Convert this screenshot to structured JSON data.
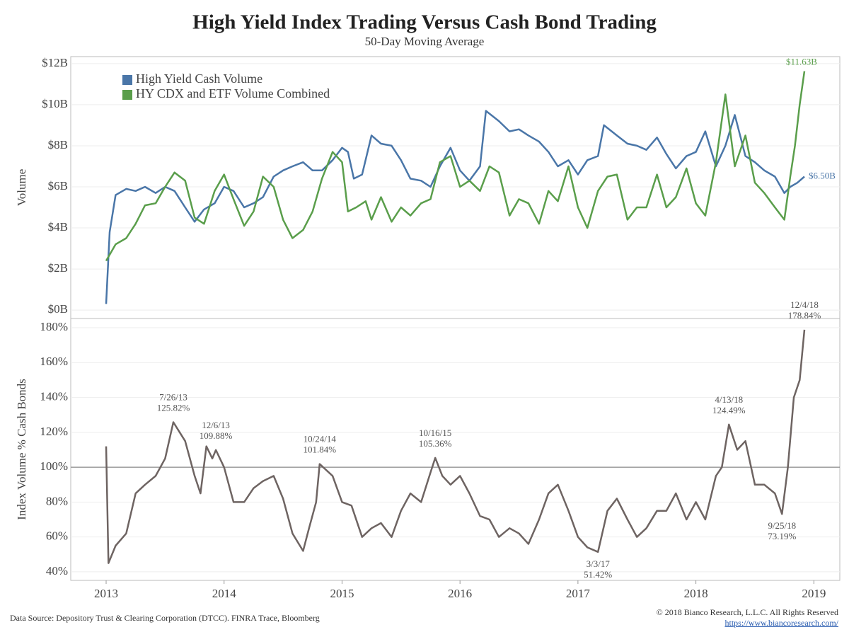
{
  "header": {
    "title": "High Yield Index Trading Versus Cash Bond Trading",
    "subtitle": "50-Day Moving Average"
  },
  "footer": {
    "source": "Data Source: Depository Trust & Clearing Corporation (DTCC). FINRA Trace, Bloomberg",
    "copyright": "© 2018 Bianco Research, L.L.C. All Rights Reserved",
    "url": "https://www.biancoresearch.com/"
  },
  "chart_data": [
    {
      "type": "line",
      "y_label": "Volume",
      "legend": "top-left",
      "grid": true,
      "xlim": [
        2012.7,
        2019.22
      ],
      "ylim": [
        -0.41,
        12.34
      ],
      "yticks": [
        {
          "value": 0,
          "label": "$0B"
        },
        {
          "value": 2,
          "label": "$2B"
        },
        {
          "value": 4,
          "label": "$4B"
        },
        {
          "value": 6,
          "label": "$6B"
        },
        {
          "value": 8,
          "label": "$8B"
        },
        {
          "value": 10,
          "label": "$10B"
        },
        {
          "value": 12,
          "label": "$12B"
        }
      ],
      "series": [
        {
          "name": "High Yield Cash Volume",
          "color": "#4a76a8",
          "x": [
            2013.0,
            2013.03,
            2013.08,
            2013.17,
            2013.25,
            2013.33,
            2013.42,
            2013.5,
            2013.58,
            2013.67,
            2013.75,
            2013.83,
            2013.92,
            2014.0,
            2014.08,
            2014.17,
            2014.25,
            2014.33,
            2014.42,
            2014.5,
            2014.58,
            2014.67,
            2014.75,
            2014.83,
            2014.92,
            2015.0,
            2015.05,
            2015.1,
            2015.17,
            2015.25,
            2015.33,
            2015.42,
            2015.5,
            2015.58,
            2015.67,
            2015.75,
            2015.83,
            2015.92,
            2016.0,
            2016.08,
            2016.17,
            2016.22,
            2016.33,
            2016.42,
            2016.5,
            2016.58,
            2016.67,
            2016.75,
            2016.83,
            2016.92,
            2017.0,
            2017.08,
            2017.17,
            2017.22,
            2017.33,
            2017.42,
            2017.5,
            2017.58,
            2017.67,
            2017.75,
            2017.83,
            2017.92,
            2018.0,
            2018.08,
            2018.17,
            2018.25,
            2018.33,
            2018.42,
            2018.5,
            2018.58,
            2018.67,
            2018.75,
            2018.8,
            2018.86,
            2018.92
          ],
          "values": [
            0.3,
            3.8,
            5.6,
            5.9,
            5.8,
            6.0,
            5.7,
            6.0,
            5.8,
            5.0,
            4.3,
            4.9,
            5.2,
            6.0,
            5.8,
            5.0,
            5.2,
            5.5,
            6.5,
            6.8,
            7.0,
            7.2,
            6.8,
            6.8,
            7.3,
            7.9,
            7.7,
            6.4,
            6.6,
            8.5,
            8.1,
            8.0,
            7.3,
            6.4,
            6.3,
            6.0,
            7.0,
            7.9,
            6.8,
            6.3,
            7.0,
            9.7,
            9.2,
            8.7,
            8.8,
            8.5,
            8.2,
            7.7,
            7.0,
            7.3,
            6.6,
            7.3,
            7.5,
            9.0,
            8.5,
            8.1,
            8.0,
            7.8,
            8.4,
            7.6,
            6.9,
            7.5,
            7.7,
            8.7,
            7.0,
            8.0,
            9.5,
            7.5,
            7.2,
            6.8,
            6.5,
            5.7,
            6.0,
            6.2,
            6.5
          ],
          "end_label": {
            "value": 6.5,
            "label": "$6.50B"
          }
        },
        {
          "name": "HY CDX and ETF Volume Combined",
          "color": "#5a9e4b",
          "x": [
            2013.0,
            2013.08,
            2013.17,
            2013.25,
            2013.33,
            2013.42,
            2013.5,
            2013.58,
            2013.67,
            2013.75,
            2013.83,
            2013.92,
            2014.0,
            2014.08,
            2014.17,
            2014.25,
            2014.33,
            2014.42,
            2014.5,
            2014.58,
            2014.67,
            2014.75,
            2014.83,
            2014.92,
            2015.0,
            2015.05,
            2015.12,
            2015.2,
            2015.25,
            2015.33,
            2015.42,
            2015.5,
            2015.58,
            2015.67,
            2015.75,
            2015.83,
            2015.92,
            2016.0,
            2016.08,
            2016.17,
            2016.25,
            2016.33,
            2016.42,
            2016.5,
            2016.58,
            2016.67,
            2016.75,
            2016.83,
            2016.92,
            2017.0,
            2017.08,
            2017.17,
            2017.25,
            2017.33,
            2017.42,
            2017.5,
            2017.58,
            2017.67,
            2017.75,
            2017.83,
            2017.92,
            2018.0,
            2018.08,
            2018.17,
            2018.25,
            2018.33,
            2018.42,
            2018.5,
            2018.58,
            2018.67,
            2018.75,
            2018.8,
            2018.84,
            2018.88,
            2018.92
          ],
          "values": [
            2.4,
            3.2,
            3.5,
            4.2,
            5.1,
            5.2,
            6.0,
            6.7,
            6.3,
            4.5,
            4.2,
            5.8,
            6.6,
            5.4,
            4.1,
            4.8,
            6.5,
            6.0,
            4.4,
            3.5,
            3.9,
            4.8,
            6.4,
            7.7,
            7.2,
            4.8,
            5.0,
            5.3,
            4.4,
            5.5,
            4.3,
            5.0,
            4.6,
            5.2,
            5.4,
            7.2,
            7.5,
            6.0,
            6.3,
            5.8,
            7.0,
            6.7,
            4.6,
            5.4,
            5.2,
            4.2,
            5.8,
            5.3,
            7.0,
            5.0,
            4.0,
            5.8,
            6.5,
            6.6,
            4.4,
            5.0,
            5.0,
            6.6,
            5.0,
            5.5,
            6.9,
            5.2,
            4.6,
            7.2,
            10.5,
            7.0,
            8.5,
            6.2,
            5.7,
            5.0,
            4.4,
            6.5,
            8.0,
            10.0,
            11.63
          ],
          "end_label": {
            "value": 11.63,
            "label": "$11.63B"
          }
        }
      ]
    },
    {
      "type": "line",
      "y_label": "Index Volume % Cash Bonds",
      "grid": true,
      "xlim": [
        2012.7,
        2019.22
      ],
      "ylim": [
        35.1,
        185.3
      ],
      "xticks": [
        2013,
        2014,
        2015,
        2016,
        2017,
        2018,
        2019
      ],
      "yticks": [
        {
          "value": 40,
          "label": "40%"
        },
        {
          "value": 60,
          "label": "60%"
        },
        {
          "value": 80,
          "label": "80%"
        },
        {
          "value": 100,
          "label": "100%"
        },
        {
          "value": 120,
          "label": "120%"
        },
        {
          "value": 140,
          "label": "140%"
        },
        {
          "value": 160,
          "label": "160%"
        },
        {
          "value": 180,
          "label": "180%"
        }
      ],
      "reference_line": 100,
      "series": [
        {
          "name": "Index Volume % Cash Bonds",
          "color": "#6e6462",
          "x": [
            2013.0,
            2013.02,
            2013.08,
            2013.17,
            2013.25,
            2013.33,
            2013.42,
            2013.5,
            2013.57,
            2013.67,
            2013.75,
            2013.8,
            2013.85,
            2013.9,
            2013.93,
            2014.0,
            2014.08,
            2014.17,
            2014.25,
            2014.33,
            2014.42,
            2014.5,
            2014.58,
            2014.67,
            2014.72,
            2014.78,
            2014.81,
            2014.92,
            2015.0,
            2015.08,
            2015.17,
            2015.25,
            2015.33,
            2015.42,
            2015.5,
            2015.58,
            2015.67,
            2015.75,
            2015.79,
            2015.85,
            2015.92,
            2016.0,
            2016.08,
            2016.17,
            2016.25,
            2016.33,
            2016.42,
            2016.5,
            2016.58,
            2016.67,
            2016.75,
            2016.83,
            2016.92,
            2017.0,
            2017.08,
            2017.17,
            2017.25,
            2017.33,
            2017.42,
            2017.5,
            2017.58,
            2017.67,
            2017.75,
            2017.83,
            2017.92,
            2018.0,
            2018.08,
            2018.17,
            2018.22,
            2018.28,
            2018.35,
            2018.42,
            2018.5,
            2018.58,
            2018.67,
            2018.73,
            2018.78,
            2018.83,
            2018.88,
            2018.92
          ],
          "values": [
            112,
            45,
            55,
            62,
            85,
            90,
            95,
            105,
            125.82,
            115,
            95,
            85,
            112,
            105,
            109.88,
            100,
            80,
            80,
            88,
            92,
            95,
            82,
            62,
            52,
            65,
            80,
            101.84,
            95,
            80,
            78,
            60,
            65,
            68,
            60,
            75,
            85,
            80,
            97,
            105.36,
            95,
            90,
            95,
            85,
            72,
            70,
            60,
            65,
            62,
            56,
            70,
            85,
            90,
            75,
            60,
            54,
            51.42,
            75,
            82,
            70,
            60,
            65,
            75,
            75,
            85,
            70,
            80,
            70,
            95,
            100,
            124.49,
            110,
            115,
            90,
            90,
            85,
            73.19,
            100,
            140,
            150,
            178.84
          ]
        }
      ],
      "annotations": [
        {
          "date": "7/26/13",
          "x": 2013.57,
          "value": 125.82,
          "label": "125.82%"
        },
        {
          "date": "12/6/13",
          "x": 2013.93,
          "value": 109.88,
          "label": "109.88%"
        },
        {
          "date": "10/24/14",
          "x": 2014.81,
          "value": 101.84,
          "label": "101.84%"
        },
        {
          "date": "10/16/15",
          "x": 2015.79,
          "value": 105.36,
          "label": "105.36%"
        },
        {
          "date": "3/3/17",
          "x": 2017.17,
          "value": 51.42,
          "label": "51.42%"
        },
        {
          "date": "4/13/18",
          "x": 2018.28,
          "value": 124.49,
          "label": "124.49%"
        },
        {
          "date": "9/25/18",
          "x": 2018.73,
          "value": 73.19,
          "label": "73.19%"
        },
        {
          "date": "12/4/18",
          "x": 2018.92,
          "value": 178.84,
          "label": "178.84%"
        }
      ]
    }
  ]
}
